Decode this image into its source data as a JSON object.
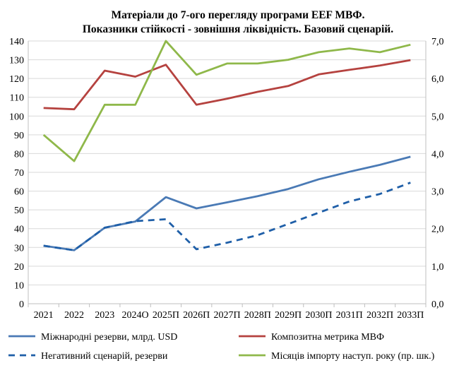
{
  "chart_data": {
    "type": "line",
    "title": "Матеріали до 7-ого перегляду програми EEF МВФ.",
    "subtitle": "Показники стійкості - зовнішня ліквідність. Базовий сценарій.",
    "categories": [
      "2021",
      "2022",
      "2023",
      "2024О",
      "2025П",
      "2026П",
      "2027П",
      "2028П",
      "2029П",
      "2030П",
      "2031П",
      "2032П",
      "2033П"
    ],
    "y_left": {
      "ylim": [
        0,
        140
      ],
      "ticks": [
        "0",
        "10",
        "20",
        "30",
        "40",
        "50",
        "60",
        "70",
        "80",
        "90",
        "100",
        "110",
        "120",
        "130",
        "140"
      ]
    },
    "y_right": {
      "ylim": [
        0,
        7
      ],
      "ticks": [
        "0,0",
        "1,0",
        "2,0",
        "3,0",
        "4,0",
        "5,0",
        "6,0",
        "7,0"
      ]
    },
    "grid": true,
    "legend_position": "bottom",
    "series": [
      {
        "name": "Міжнародні резерви, млрд. USD",
        "axis": "left",
        "style": "solid",
        "color": "#4a7ab5",
        "values": [
          30.9,
          28.5,
          40.5,
          43.8,
          56.8,
          50.8,
          54,
          57.3,
          61.1,
          66.3,
          70.3,
          74,
          78.3
        ]
      },
      {
        "name": "Композитна метрика МВФ",
        "axis": "left",
        "style": "solid",
        "color": "#b5423f",
        "values": [
          104.3,
          103.6,
          124.2,
          121,
          127.3,
          106,
          109.2,
          112.9,
          116,
          122.2,
          124.6,
          126.9,
          129.8
        ]
      },
      {
        "name": "Негативний сценарій, резерви",
        "axis": "left",
        "style": "dashed",
        "color": "#1f5fa8",
        "values": [
          30.9,
          28.5,
          40.5,
          44,
          45,
          29,
          32.5,
          36.5,
          42.5,
          48.5,
          54.5,
          58.5,
          64.5
        ]
      },
      {
        "name": "Місяців імпорту наступ. року (пр. шк.)",
        "axis": "right",
        "style": "solid",
        "color": "#8fb84a",
        "values": [
          4.5,
          3.8,
          5.3,
          5.3,
          7.0,
          6.1,
          6.4,
          6.4,
          6.5,
          6.7,
          6.8,
          6.7,
          6.9
        ]
      }
    ]
  }
}
